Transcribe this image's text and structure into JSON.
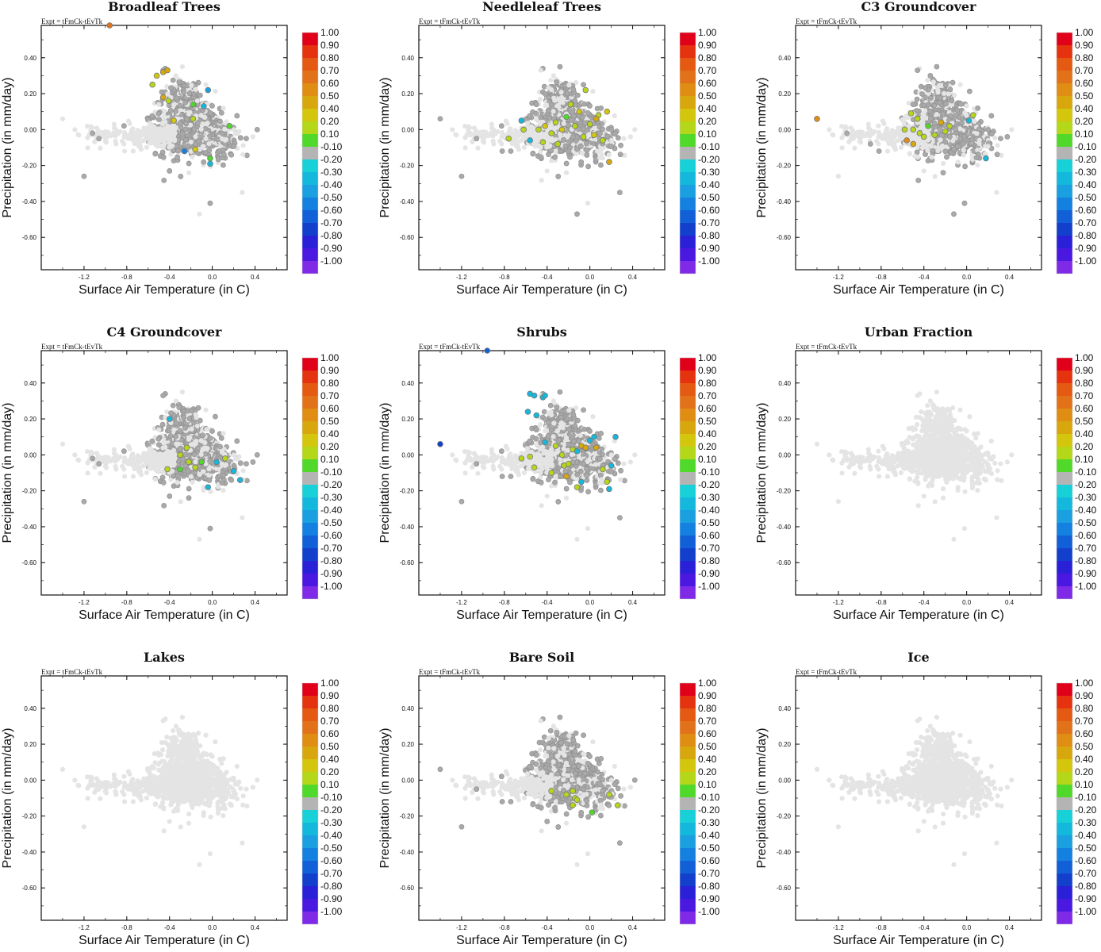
{
  "expt_label": "Expt = tFmCk-tEvTk",
  "colorbar": {
    "labels": [
      "1.00",
      "0.90",
      "0.80",
      "0.70",
      "0.60",
      "0.50",
      "0.40",
      "0.20",
      "0.10",
      "-0.10",
      "-0.20",
      "-0.30",
      "-0.40",
      "-0.50",
      "-0.60",
      "-0.70",
      "-0.80",
      "-0.90",
      "-1.00"
    ],
    "colors": [
      "#e0001a",
      "#e4330e",
      "#e45a12",
      "#e2721a",
      "#e08d14",
      "#d8a70e",
      "#d4c60c",
      "#b4d71a",
      "#50d82a",
      "#b4b4b4",
      "#18d0d8",
      "#14b8dc",
      "#1aa0e0",
      "#1480e0",
      "#1260d8",
      "#1240cc",
      "#2a20d8",
      "#4a18e0",
      "#7e2ae6"
    ],
    "neutral_color": "#b4b4b4"
  },
  "chart_data": [
    {
      "type": "scatter",
      "title": "Broadleaf Trees",
      "xlabel": "Surface Air Temperature (in C)",
      "ylabel": "Precipitation (in mm/day)",
      "xlim": [
        -1.6,
        0.7
      ],
      "ylim": [
        -0.78,
        0.58
      ],
      "xticks": [
        "-1.2",
        "-0.8",
        "-0.4",
        "0.0",
        "0.4"
      ],
      "yticks": [
        "0.40",
        "0.20",
        "0.00",
        "-0.20",
        "-0.40",
        "-0.60"
      ],
      "background": "light-grey cloud",
      "highlights": [
        {
          "x": -0.96,
          "y": 0.58,
          "v": 0.65
        },
        {
          "x": -0.56,
          "y": 0.25,
          "v": 0.15
        },
        {
          "x": -0.52,
          "y": 0.3,
          "v": 0.3
        },
        {
          "x": -0.46,
          "y": 0.32,
          "v": 0.45
        },
        {
          "x": -0.42,
          "y": 0.33,
          "v": 0.5
        },
        {
          "x": -0.46,
          "y": 0.18,
          "v": 0.5
        },
        {
          "x": -0.41,
          "y": 0.16,
          "v": 0.2
        },
        {
          "x": -0.36,
          "y": 0.05,
          "v": 0.3
        },
        {
          "x": -0.18,
          "y": 0.14,
          "v": 0.1
        },
        {
          "x": -0.08,
          "y": 0.13,
          "v": -0.3
        },
        {
          "x": -0.04,
          "y": 0.22,
          "v": -0.35
        },
        {
          "x": -0.18,
          "y": 0.06,
          "v": 0.15
        },
        {
          "x": 0.16,
          "y": 0.02,
          "v": 0.1
        },
        {
          "x": -0.16,
          "y": -0.11,
          "v": 0.3
        },
        {
          "x": -0.02,
          "y": -0.16,
          "v": 0.1
        },
        {
          "x": -0.02,
          "y": -0.19,
          "v": -0.3
        },
        {
          "x": -0.26,
          "y": -0.12,
          "v": -0.4
        }
      ]
    },
    {
      "type": "scatter",
      "title": "Needleleaf Trees",
      "xlabel": "Surface Air Temperature (in C)",
      "ylabel": "Precipitation (in mm/day)",
      "xlim": [
        -1.6,
        0.7
      ],
      "ylim": [
        -0.78,
        0.58
      ],
      "xticks": [
        "-1.2",
        "-0.8",
        "-0.4",
        "0.0",
        "0.4"
      ],
      "yticks": [
        "0.40",
        "0.20",
        "0.00",
        "-0.20",
        "-0.40",
        "-0.60"
      ],
      "background": "light-grey cloud",
      "highlights": [
        {
          "x": -0.76,
          "y": -0.05,
          "v": 0.15
        },
        {
          "x": -0.62,
          "y": 0.0,
          "v": 0.2
        },
        {
          "x": -0.56,
          "y": -0.06,
          "v": -0.2
        },
        {
          "x": -0.48,
          "y": 0.0,
          "v": 0.15
        },
        {
          "x": -0.42,
          "y": 0.02,
          "v": 0.3
        },
        {
          "x": -0.36,
          "y": -0.02,
          "v": 0.2
        },
        {
          "x": -0.32,
          "y": 0.04,
          "v": 0.15
        },
        {
          "x": -0.26,
          "y": 0.0,
          "v": 0.3
        },
        {
          "x": -0.22,
          "y": 0.07,
          "v": 0.1
        },
        {
          "x": -0.18,
          "y": 0.14,
          "v": 0.2
        },
        {
          "x": -0.14,
          "y": 0.02,
          "v": 0.15
        },
        {
          "x": -0.1,
          "y": 0.1,
          "v": 0.3
        },
        {
          "x": -0.04,
          "y": 0.22,
          "v": 0.15
        },
        {
          "x": 0.0,
          "y": 0.03,
          "v": 0.2
        },
        {
          "x": 0.04,
          "y": -0.03,
          "v": 0.3
        },
        {
          "x": 0.08,
          "y": 0.08,
          "v": 0.2
        },
        {
          "x": 0.12,
          "y": -0.06,
          "v": 0.15
        },
        {
          "x": 0.16,
          "y": 0.1,
          "v": 0.3
        },
        {
          "x": 0.18,
          "y": -0.18,
          "v": 0.4
        },
        {
          "x": -0.44,
          "y": -0.07,
          "v": 0.2
        },
        {
          "x": -0.3,
          "y": -0.08,
          "v": 0.15
        },
        {
          "x": -0.06,
          "y": -0.04,
          "v": 0.2
        },
        {
          "x": 0.06,
          "y": 0.06,
          "v": 0.4
        },
        {
          "x": -0.64,
          "y": 0.05,
          "v": -0.2
        }
      ]
    },
    {
      "type": "scatter",
      "title": "C3 Groundcover",
      "xlabel": "Surface Air Temperature (in C)",
      "ylabel": "Precipitation (in mm/day)",
      "xlim": [
        -1.6,
        0.7
      ],
      "ylim": [
        -0.78,
        0.58
      ],
      "xticks": [
        "-1.2",
        "-0.8",
        "-0.4",
        "0.0",
        "0.4"
      ],
      "yticks": [
        "0.40",
        "0.20",
        "0.00",
        "-0.20",
        "-0.40",
        "-0.60"
      ],
      "background": "light-grey cloud",
      "highlights": [
        {
          "x": -1.4,
          "y": 0.06,
          "v": 0.6
        },
        {
          "x": -0.56,
          "y": -0.06,
          "v": 0.6
        },
        {
          "x": -0.5,
          "y": -0.08,
          "v": 0.5
        },
        {
          "x": -0.58,
          "y": 0.0,
          "v": 0.15
        },
        {
          "x": -0.52,
          "y": 0.09,
          "v": 0.15
        },
        {
          "x": -0.46,
          "y": 0.06,
          "v": 0.2
        },
        {
          "x": -0.44,
          "y": -0.02,
          "v": 0.15
        },
        {
          "x": -0.4,
          "y": -0.04,
          "v": 0.2
        },
        {
          "x": -0.36,
          "y": 0.02,
          "v": 0.1
        },
        {
          "x": -0.3,
          "y": -0.03,
          "v": 0.2
        },
        {
          "x": -0.24,
          "y": 0.04,
          "v": 0.4
        },
        {
          "x": -0.2,
          "y": -0.01,
          "v": 0.15
        },
        {
          "x": -0.16,
          "y": 0.02,
          "v": 0.2
        },
        {
          "x": -0.5,
          "y": 0.0,
          "v": 0.15
        },
        {
          "x": 0.02,
          "y": 0.05,
          "v": -0.25
        },
        {
          "x": 0.06,
          "y": 0.08,
          "v": 0.2
        },
        {
          "x": 0.18,
          "y": -0.16,
          "v": -0.2
        }
      ]
    },
    {
      "type": "scatter",
      "title": "C4 Groundcover",
      "xlabel": "Surface Air Temperature (in C)",
      "ylabel": "Precipitation (in mm/day)",
      "xlim": [
        -1.6,
        0.7
      ],
      "ylim": [
        -0.78,
        0.58
      ],
      "xticks": [
        "-1.2",
        "-0.8",
        "-0.4",
        "0.0",
        "0.4"
      ],
      "yticks": [
        "0.40",
        "0.20",
        "0.00",
        "-0.20",
        "-0.40",
        "-0.60"
      ],
      "background": "light-grey cloud",
      "highlights": [
        {
          "x": -0.24,
          "y": 0.04,
          "v": 0.15
        },
        {
          "x": -0.22,
          "y": -0.04,
          "v": 0.15
        },
        {
          "x": -0.3,
          "y": -0.08,
          "v": 0.1
        },
        {
          "x": -0.16,
          "y": -0.07,
          "v": 0.15
        },
        {
          "x": -0.1,
          "y": -0.04,
          "v": 0.1
        },
        {
          "x": -0.3,
          "y": 0.0,
          "v": 0.15
        },
        {
          "x": 0.12,
          "y": -0.02,
          "v": 0.2
        },
        {
          "x": 0.2,
          "y": -0.09,
          "v": -0.25
        },
        {
          "x": 0.26,
          "y": -0.14,
          "v": -0.3
        },
        {
          "x": 0.04,
          "y": -0.04,
          "v": -0.2
        },
        {
          "x": -0.42,
          "y": -0.08,
          "v": 0.15
        },
        {
          "x": -0.04,
          "y": -0.18,
          "v": -0.25
        },
        {
          "x": -0.4,
          "y": 0.2,
          "v": -0.25
        }
      ]
    },
    {
      "type": "scatter",
      "title": "Shrubs",
      "xlabel": "Surface Air Temperature (in C)",
      "ylabel": "Precipitation (in mm/day)",
      "xlim": [
        -1.6,
        0.7
      ],
      "ylim": [
        -0.78,
        0.58
      ],
      "xticks": [
        "-1.2",
        "-0.8",
        "-0.4",
        "0.0",
        "0.4"
      ],
      "yticks": [
        "0.40",
        "0.20",
        "0.00",
        "-0.20",
        "-0.40",
        "-0.60"
      ],
      "background": "light-grey cloud",
      "highlights": [
        {
          "x": -0.96,
          "y": 0.58,
          "v": -0.55
        },
        {
          "x": -1.4,
          "y": 0.06,
          "v": -0.65
        },
        {
          "x": -0.56,
          "y": 0.34,
          "v": -0.3
        },
        {
          "x": -0.52,
          "y": 0.33,
          "v": -0.3
        },
        {
          "x": -0.44,
          "y": 0.32,
          "v": -0.3
        },
        {
          "x": -0.42,
          "y": 0.33,
          "v": -0.3
        },
        {
          "x": -0.58,
          "y": 0.24,
          "v": -0.25
        },
        {
          "x": -0.5,
          "y": 0.22,
          "v": -0.3
        },
        {
          "x": -0.42,
          "y": 0.07,
          "v": -0.25
        },
        {
          "x": -0.32,
          "y": 0.05,
          "v": 0.15
        },
        {
          "x": -0.26,
          "y": 0.0,
          "v": 0.2
        },
        {
          "x": -0.24,
          "y": -0.06,
          "v": 0.15
        },
        {
          "x": -0.2,
          "y": -0.05,
          "v": 0.15
        },
        {
          "x": -0.16,
          "y": 0.03,
          "v": 0.2
        },
        {
          "x": -0.08,
          "y": 0.05,
          "v": 0.4
        },
        {
          "x": -0.04,
          "y": 0.04,
          "v": 0.45
        },
        {
          "x": 0.0,
          "y": 0.08,
          "v": -0.25
        },
        {
          "x": 0.04,
          "y": 0.1,
          "v": -0.3
        },
        {
          "x": 0.06,
          "y": 0.04,
          "v": 0.4
        },
        {
          "x": 0.12,
          "y": -0.08,
          "v": 0.2
        },
        {
          "x": 0.16,
          "y": -0.15,
          "v": 0.15
        },
        {
          "x": 0.2,
          "y": -0.06,
          "v": -0.25
        },
        {
          "x": -0.22,
          "y": -0.12,
          "v": 0.45
        },
        {
          "x": -0.12,
          "y": -0.18,
          "v": 0.15
        },
        {
          "x": 0.18,
          "y": -0.19,
          "v": -0.3
        },
        {
          "x": -0.36,
          "y": -0.1,
          "v": 0.15
        },
        {
          "x": -0.64,
          "y": -0.02,
          "v": 0.15
        },
        {
          "x": -0.56,
          "y": -0.01,
          "v": 0.15
        },
        {
          "x": -0.52,
          "y": -0.07,
          "v": 0.15
        },
        {
          "x": 0.24,
          "y": 0.1,
          "v": -0.2
        },
        {
          "x": -0.08,
          "y": -0.15,
          "v": -0.25
        },
        {
          "x": -0.12,
          "y": 0.02,
          "v": -0.2
        }
      ]
    },
    {
      "type": "scatter",
      "title": "Urban Fraction",
      "xlabel": "Surface Air Temperature (in C)",
      "ylabel": "Precipitation (in mm/day)",
      "xlim": [
        -1.6,
        0.7
      ],
      "ylim": [
        -0.78,
        0.58
      ],
      "xticks": [
        "-1.2",
        "-0.8",
        "-0.4",
        "0.0",
        "0.4"
      ],
      "yticks": [
        "0.40",
        "0.20",
        "0.00",
        "-0.20",
        "-0.40",
        "-0.60"
      ],
      "background": "light-grey cloud only",
      "highlights": []
    },
    {
      "type": "scatter",
      "title": "Lakes",
      "xlabel": "Surface Air Temperature (in C)",
      "ylabel": "Precipitation (in mm/day)",
      "xlim": [
        -1.6,
        0.7
      ],
      "ylim": [
        -0.78,
        0.58
      ],
      "xticks": [
        "-1.2",
        "-0.8",
        "-0.4",
        "0.0",
        "0.4"
      ],
      "yticks": [
        "0.40",
        "0.20",
        "0.00",
        "-0.20",
        "-0.40",
        "-0.60"
      ],
      "background": "light-grey cloud only",
      "highlights": []
    },
    {
      "type": "scatter",
      "title": "Bare Soil",
      "xlabel": "Surface Air Temperature (in C)",
      "ylabel": "Precipitation (in mm/day)",
      "xlim": [
        -1.6,
        0.7
      ],
      "ylim": [
        -0.78,
        0.58
      ],
      "xticks": [
        "-1.2",
        "-0.8",
        "-0.4",
        "0.0",
        "0.4"
      ],
      "yticks": [
        "0.40",
        "0.20",
        "0.00",
        "-0.20",
        "-0.40",
        "-0.60"
      ],
      "background": "light-grey cloud",
      "highlights": [
        {
          "x": -0.36,
          "y": -0.06,
          "v": 0.15
        },
        {
          "x": -0.16,
          "y": -0.06,
          "v": 0.15
        },
        {
          "x": -0.14,
          "y": -0.1,
          "v": 0.15
        },
        {
          "x": -0.12,
          "y": -0.11,
          "v": 0.15
        },
        {
          "x": -0.16,
          "y": -0.14,
          "v": 0.2
        },
        {
          "x": 0.02,
          "y": -0.18,
          "v": 0.1
        },
        {
          "x": 0.18,
          "y": -0.08,
          "v": 0.15
        },
        {
          "x": 0.26,
          "y": -0.14,
          "v": 0.15
        },
        {
          "x": -0.22,
          "y": -0.08,
          "v": 0.2
        }
      ]
    },
    {
      "type": "scatter",
      "title": "Ice",
      "xlabel": "Surface Air Temperature (in C)",
      "ylabel": "Precipitation (in mm/day)",
      "xlim": [
        -1.6,
        0.7
      ],
      "ylim": [
        -0.78,
        0.58
      ],
      "xticks": [
        "-1.2",
        "-0.8",
        "-0.4",
        "0.0",
        "0.4"
      ],
      "yticks": [
        "0.40",
        "0.20",
        "0.00",
        "-0.20",
        "-0.40",
        "-0.60"
      ],
      "background": "light-grey cloud only",
      "highlights": []
    }
  ]
}
